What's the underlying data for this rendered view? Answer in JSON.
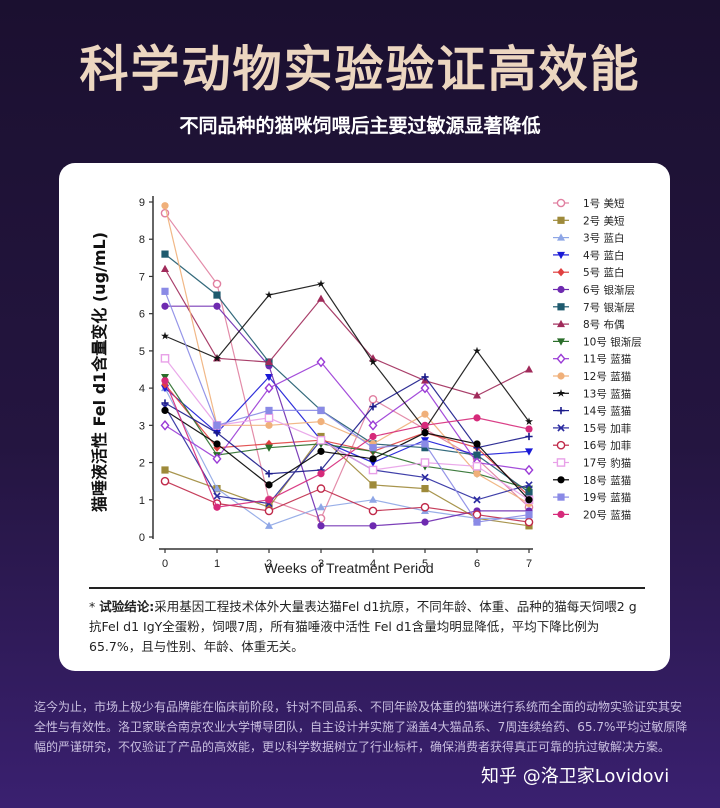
{
  "header": {
    "title": "科学动物实验验证高效能",
    "subtitle": "不同品种的猫咪饲喂后主要过敏源显著降低"
  },
  "conclusion": {
    "label": "试验结论:",
    "text": "采用基因工程技术体外大量表达猫Fel d1抗原，不同年龄、体重、品种的猫每天饲喂2 g 抗Fel d1 IgY全蛋粉，饲喂7周，所有猫唾液中活性 Fel d1含量均明显降低，平均下降比例为65.7%，且与性别、年龄、体重无关。"
  },
  "footer": {
    "text": "迄今为止，市场上极少有品牌能在临床前阶段，针对不同品系、不同年龄及体重的猫咪进行系统而全面的动物实验证实其安全性与有效性。洛卫家联合南京农业大学博导团队，自主设计并实施了涵盖4大猫品系、7周连续给药、65.7%平均过敏原降幅的严谨研究，不仅验证了产品的高效能，更以科学数据树立了行业标杆，确保消费者获得真正可靠的抗过敏解决方案。",
    "watermark": "知乎 @洛卫家Lovidovi"
  },
  "chart_data": {
    "type": "line",
    "xlabel": "Weeks of Treatment Period",
    "ylabel": "猫唾液活性 Fel d1含量变化 (ug/mL)",
    "x": [
      0,
      1,
      2,
      3,
      4,
      5,
      6,
      7
    ],
    "xlim": [
      0,
      7
    ],
    "ylim": [
      0,
      9
    ],
    "x_ticks": [
      "0",
      "1",
      "2",
      "3",
      "4",
      "5",
      "6",
      "7"
    ],
    "y_ticks": [
      "0",
      "1",
      "2",
      "3",
      "4",
      "5",
      "6",
      "7",
      "8",
      "9"
    ],
    "legend_position": "right",
    "series": [
      {
        "name": "1号 美短",
        "color": "#e07fa0",
        "marker": "circle-open",
        "values": [
          8.7,
          6.8,
          1.0,
          0.5,
          3.7,
          2.9,
          2.1,
          0.8
        ]
      },
      {
        "name": "2号 美短",
        "color": "#9e8a3a",
        "marker": "square",
        "values": [
          1.8,
          1.3,
          0.8,
          2.7,
          1.4,
          1.3,
          0.5,
          0.3
        ]
      },
      {
        "name": "3号 蓝白",
        "color": "#8ea6e6",
        "marker": "triangle-up",
        "values": [
          4.0,
          1.3,
          0.3,
          0.8,
          1.0,
          0.7,
          0.5,
          0.5
        ]
      },
      {
        "name": "4号 蓝白",
        "color": "#1a1ad6",
        "marker": "triangle-down",
        "values": [
          4.0,
          2.8,
          4.3,
          2.6,
          2.0,
          2.6,
          2.2,
          2.3
        ]
      },
      {
        "name": "5号 蓝白",
        "color": "#e04040",
        "marker": "diamond",
        "values": [
          4.1,
          2.4,
          2.5,
          2.6,
          2.3,
          2.8,
          2.4,
          1.1
        ]
      },
      {
        "name": "6号 银渐层",
        "color": "#6e2ab0",
        "marker": "circle",
        "values": [
          6.2,
          6.2,
          4.6,
          0.3,
          0.3,
          0.4,
          0.7,
          0.7
        ]
      },
      {
        "name": "7号 银渐层",
        "color": "#1e5a6e",
        "marker": "square",
        "values": [
          7.6,
          6.5,
          4.7,
          3.4,
          2.5,
          2.4,
          2.2,
          1.2
        ]
      },
      {
        "name": "8号 布偶",
        "color": "#a02a5a",
        "marker": "triangle-up",
        "values": [
          7.2,
          4.8,
          4.7,
          6.4,
          4.8,
          4.2,
          3.8,
          4.5
        ]
      },
      {
        "name": "10号 银渐层",
        "color": "#2a6e2a",
        "marker": "triangle-down",
        "values": [
          4.3,
          2.2,
          2.4,
          2.5,
          2.3,
          1.9,
          1.7,
          1.3
        ]
      },
      {
        "name": "11号 蓝猫",
        "color": "#9a3ad6",
        "marker": "diamond-open",
        "values": [
          3.0,
          2.1,
          4.0,
          4.7,
          3.0,
          4.0,
          2.0,
          1.8
        ]
      },
      {
        "name": "12号 蓝猫",
        "color": "#f0b07a",
        "marker": "circle",
        "values": [
          8.9,
          3.0,
          3.0,
          3.1,
          2.5,
          3.3,
          1.7,
          0.9
        ]
      },
      {
        "name": "13号 蓝猫",
        "color": "#111111",
        "marker": "star",
        "values": [
          5.4,
          4.8,
          6.5,
          6.8,
          4.7,
          2.9,
          5.0,
          3.1
        ]
      },
      {
        "name": "14号 蓝猫",
        "color": "#1a1a8a",
        "marker": "plus",
        "values": [
          3.6,
          2.8,
          1.7,
          1.8,
          3.5,
          4.3,
          2.4,
          2.7
        ]
      },
      {
        "name": "15号 加菲",
        "color": "#2a2aa0",
        "marker": "cross",
        "values": [
          3.5,
          1.1,
          0.9,
          2.6,
          1.8,
          1.6,
          1.0,
          1.4
        ]
      },
      {
        "name": "16号 加菲",
        "color": "#c02a4a",
        "marker": "circle-open",
        "values": [
          1.5,
          0.9,
          0.7,
          1.3,
          0.7,
          0.8,
          0.6,
          0.4
        ]
      },
      {
        "name": "17号 豹猫",
        "color": "#e8a0e8",
        "marker": "square-open",
        "values": [
          4.8,
          3.0,
          3.2,
          2.6,
          1.8,
          2.0,
          1.9,
          1.0
        ]
      },
      {
        "name": "18号 蓝猫",
        "color": "#000000",
        "marker": "circle",
        "values": [
          3.4,
          2.5,
          1.4,
          2.3,
          2.1,
          2.8,
          2.5,
          1.0
        ]
      },
      {
        "name": "19号 蓝猫",
        "color": "#8a8ae6",
        "marker": "square",
        "values": [
          6.6,
          3.0,
          3.4,
          3.4,
          2.4,
          2.5,
          0.4,
          0.6
        ]
      },
      {
        "name": "20号 蓝猫",
        "color": "#d62a7a",
        "marker": "circle",
        "values": [
          4.2,
          0.8,
          1.0,
          1.7,
          2.7,
          3.0,
          3.2,
          2.9
        ]
      }
    ]
  }
}
